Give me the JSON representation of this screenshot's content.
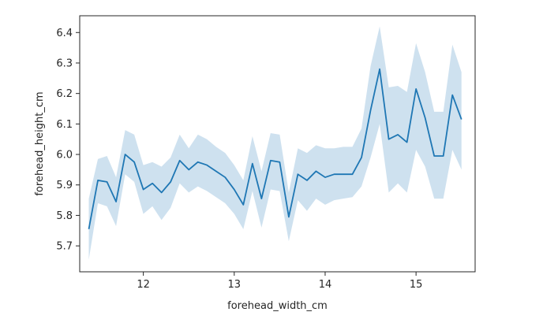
{
  "chart_data": {
    "type": "line",
    "title": "",
    "xlabel": "forehead_width_cm",
    "ylabel": "forehead_height_cm",
    "xlim": [
      11.3,
      15.65
    ],
    "ylim": [
      5.615,
      6.455
    ],
    "xticks": [
      12,
      13,
      14,
      15
    ],
    "yticks": [
      5.7,
      5.8,
      5.9,
      6.0,
      6.1,
      6.2,
      6.3,
      6.4
    ],
    "xtick_labels": [
      "12",
      "13",
      "14",
      "15"
    ],
    "ytick_labels": [
      "5.7",
      "5.8",
      "5.9",
      "6.0",
      "6.1",
      "6.2",
      "6.3",
      "6.4"
    ],
    "grid": false,
    "line_color": "#1f77b4",
    "band_color": "#1f77b4",
    "series": [
      {
        "x": [
          11.4,
          11.5,
          11.6,
          11.7,
          11.8,
          11.9,
          12.0,
          12.1,
          12.2,
          12.3,
          12.4,
          12.5,
          12.6,
          12.7,
          12.8,
          12.9,
          13.0,
          13.1,
          13.2,
          13.3,
          13.4,
          13.5,
          13.6,
          13.7,
          13.8,
          13.9,
          14.0,
          14.1,
          14.2,
          14.3,
          14.4,
          14.5,
          14.6,
          14.7,
          14.8,
          14.9,
          15.0,
          15.1,
          15.2,
          15.3,
          15.4,
          15.5
        ],
        "y": [
          5.755,
          5.915,
          5.91,
          5.845,
          6.0,
          5.975,
          5.885,
          5.905,
          5.875,
          5.91,
          5.98,
          5.95,
          5.975,
          5.965,
          5.945,
          5.925,
          5.885,
          5.835,
          5.97,
          5.855,
          5.98,
          5.975,
          5.795,
          5.935,
          5.915,
          5.945,
          5.925,
          5.935,
          5.935,
          5.935,
          5.99,
          6.145,
          6.28,
          6.05,
          6.065,
          6.04,
          6.215,
          6.12,
          5.995,
          5.995,
          6.195,
          6.115
        ],
        "lower": [
          5.655,
          5.84,
          5.83,
          5.765,
          5.935,
          5.91,
          5.805,
          5.83,
          5.785,
          5.825,
          5.905,
          5.875,
          5.895,
          5.88,
          5.86,
          5.84,
          5.805,
          5.755,
          5.88,
          5.76,
          5.885,
          5.88,
          5.715,
          5.85,
          5.815,
          5.855,
          5.835,
          5.85,
          5.855,
          5.86,
          5.895,
          5.99,
          6.1,
          5.875,
          5.905,
          5.875,
          6.015,
          5.96,
          5.855,
          5.855,
          6.015,
          5.95
        ],
        "upper": [
          5.855,
          5.985,
          5.995,
          5.925,
          6.08,
          6.065,
          5.965,
          5.975,
          5.96,
          5.99,
          6.065,
          6.02,
          6.065,
          6.05,
          6.025,
          6.005,
          5.965,
          5.915,
          6.06,
          5.945,
          6.07,
          6.065,
          5.875,
          6.02,
          6.005,
          6.03,
          6.02,
          6.02,
          6.025,
          6.025,
          6.085,
          6.29,
          6.42,
          6.22,
          6.225,
          6.205,
          6.365,
          6.27,
          6.14,
          6.14,
          6.36,
          6.27
        ]
      }
    ]
  }
}
